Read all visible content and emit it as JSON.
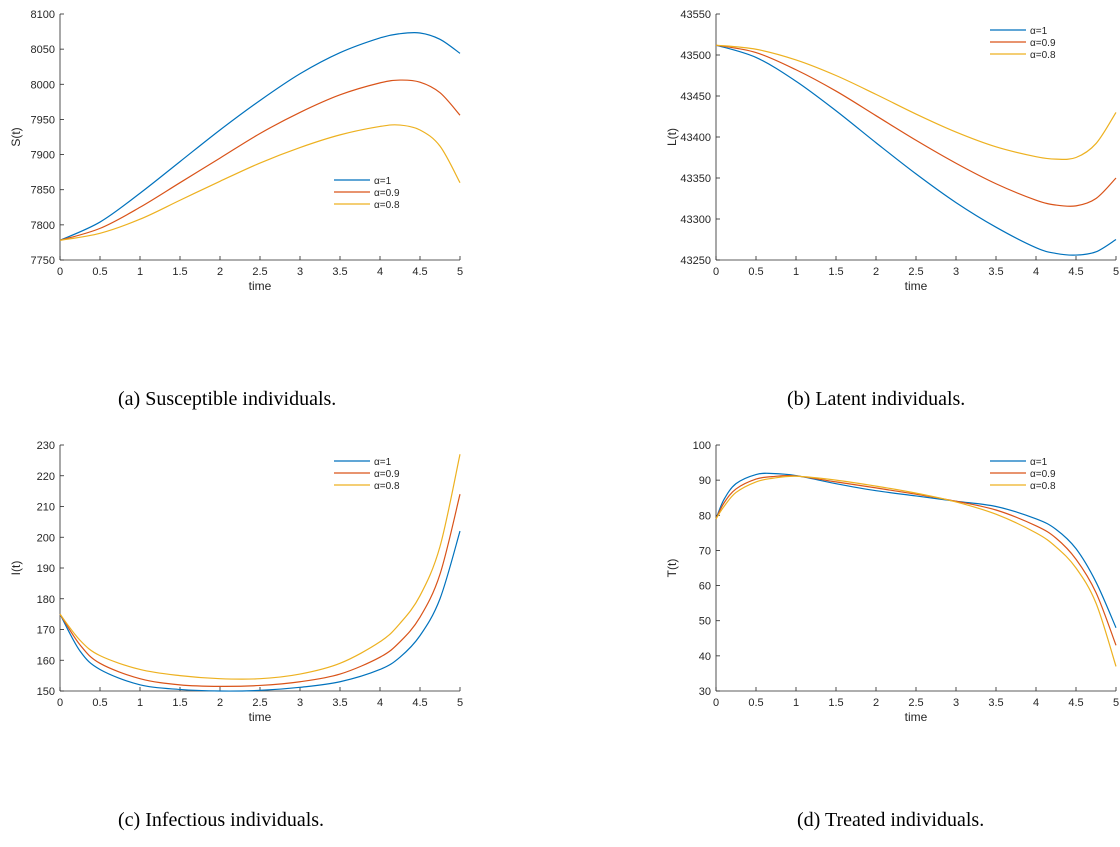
{
  "colors": {
    "alpha1": "#0072BD",
    "alpha09": "#D95319",
    "alpha08": "#EDB120"
  },
  "captions": {
    "a": "(a) Susceptible individuals.",
    "b": "(b) Latent individuals.",
    "c": "(c) Infectious individuals.",
    "d": "(d) Treated individuals."
  },
  "chart_data": [
    {
      "id": "a",
      "type": "line",
      "title": "",
      "xlabel": "time",
      "ylabel": "S(t)",
      "xlim": [
        0,
        5
      ],
      "ylim": [
        7750,
        8100
      ],
      "xticks": [
        0,
        0.5,
        1,
        1.5,
        2,
        2.5,
        3,
        3.5,
        4,
        4.5,
        5
      ],
      "yticks": [
        7750,
        7800,
        7850,
        7900,
        7950,
        8000,
        8050,
        8100
      ],
      "legend_position": "middle-right",
      "x": [
        0,
        0.5,
        1,
        1.5,
        2,
        2.5,
        3,
        3.5,
        4,
        4.25,
        4.5,
        4.75,
        5
      ],
      "series": [
        {
          "name": "α=1",
          "color": "#0072BD",
          "values": [
            7778,
            7804,
            7845,
            7890,
            7935,
            7977,
            8015,
            8045,
            8066,
            8072,
            8073,
            8064,
            8044
          ]
        },
        {
          "name": "α=0.9",
          "color": "#D95319",
          "values": [
            7778,
            7795,
            7825,
            7860,
            7895,
            7930,
            7960,
            7985,
            8002,
            8006,
            8003,
            7988,
            7956
          ]
        },
        {
          "name": "α=0.8",
          "color": "#EDB120",
          "values": [
            7778,
            7788,
            7808,
            7835,
            7862,
            7888,
            7910,
            7928,
            7940,
            7942,
            7935,
            7912,
            7860
          ]
        }
      ]
    },
    {
      "id": "b",
      "type": "line",
      "title": "",
      "xlabel": "time",
      "ylabel": "L(t)",
      "xlim": [
        0,
        5
      ],
      "ylim": [
        43250,
        43550
      ],
      "xticks": [
        0,
        0.5,
        1,
        1.5,
        2,
        2.5,
        3,
        3.5,
        4,
        4.5,
        5
      ],
      "yticks": [
        43250,
        43300,
        43350,
        43400,
        43450,
        43500,
        43550
      ],
      "legend_position": "top-right",
      "x": [
        0,
        0.5,
        1,
        1.5,
        2,
        2.5,
        3,
        3.5,
        4,
        4.25,
        4.5,
        4.75,
        5
      ],
      "series": [
        {
          "name": "α=1",
          "color": "#0072BD",
          "values": [
            43512,
            43497,
            43468,
            43432,
            43393,
            43355,
            43320,
            43290,
            43265,
            43258,
            43256,
            43260,
            43275
          ]
        },
        {
          "name": "α=0.9",
          "color": "#D95319",
          "values": [
            43512,
            43503,
            43482,
            43456,
            43426,
            43396,
            43368,
            43343,
            43323,
            43317,
            43316,
            43325,
            43350
          ]
        },
        {
          "name": "α=0.8",
          "color": "#EDB120",
          "values": [
            43512,
            43507,
            43494,
            43475,
            43452,
            43428,
            43406,
            43388,
            43376,
            43373,
            43375,
            43392,
            43430
          ]
        }
      ]
    },
    {
      "id": "c",
      "type": "line",
      "title": "",
      "xlabel": "time",
      "ylabel": "I(t)",
      "xlim": [
        0,
        5
      ],
      "ylim": [
        150,
        230
      ],
      "xticks": [
        0,
        0.5,
        1,
        1.5,
        2,
        2.5,
        3,
        3.5,
        4,
        4.5,
        5
      ],
      "yticks": [
        150,
        160,
        170,
        180,
        190,
        200,
        210,
        220,
        230
      ],
      "legend_position": "top-right",
      "x": [
        0,
        0.25,
        0.5,
        1,
        1.5,
        2,
        2.5,
        3,
        3.5,
        4,
        4.25,
        4.5,
        4.75,
        5
      ],
      "series": [
        {
          "name": "α=1",
          "color": "#0072BD",
          "values": [
            175,
            163,
            157,
            152,
            150.5,
            150,
            150.2,
            151.2,
            153,
            157,
            161,
            168,
            180,
            202
          ]
        },
        {
          "name": "α=0.9",
          "color": "#D95319",
          "values": [
            175,
            165,
            159,
            154,
            152,
            151.5,
            151.8,
            153,
            155.5,
            161,
            166,
            174,
            188,
            214
          ]
        },
        {
          "name": "α=0.8",
          "color": "#EDB120",
          "values": [
            175,
            166.5,
            161.5,
            157,
            155,
            154,
            154,
            155.5,
            159,
            166,
            172,
            181,
            197,
            227
          ]
        }
      ]
    },
    {
      "id": "d",
      "type": "line",
      "title": "",
      "xlabel": "time",
      "ylabel": "T(t)",
      "xlim": [
        0,
        5
      ],
      "ylim": [
        30,
        100
      ],
      "xticks": [
        0,
        0.5,
        1,
        1.5,
        2,
        2.5,
        3,
        3.5,
        4,
        4.5,
        5
      ],
      "yticks": [
        30,
        40,
        50,
        60,
        70,
        80,
        90,
        100
      ],
      "legend_position": "top-right",
      "x": [
        0,
        0.1,
        0.25,
        0.5,
        0.7,
        1,
        1.5,
        2,
        2.5,
        3,
        3.5,
        4,
        4.25,
        4.5,
        4.75,
        5
      ],
      "series": [
        {
          "name": "α=1",
          "color": "#0072BD",
          "values": [
            79,
            84.5,
            89,
            91.6,
            91.9,
            91.3,
            89,
            87,
            85.5,
            84,
            82.5,
            79,
            76,
            70.5,
            61,
            48
          ]
        },
        {
          "name": "α=0.9",
          "color": "#D95319",
          "values": [
            79,
            83.5,
            87.5,
            90.3,
            91,
            91.2,
            89.5,
            87.8,
            86,
            84,
            81.5,
            77,
            73.5,
            67.5,
            58,
            43
          ]
        },
        {
          "name": "α=0.8",
          "color": "#EDB120",
          "values": [
            79,
            82.5,
            86.5,
            89.5,
            90.5,
            91.1,
            90,
            88.3,
            86.3,
            83.8,
            80.3,
            75,
            71,
            65,
            55,
            37
          ]
        }
      ]
    }
  ]
}
